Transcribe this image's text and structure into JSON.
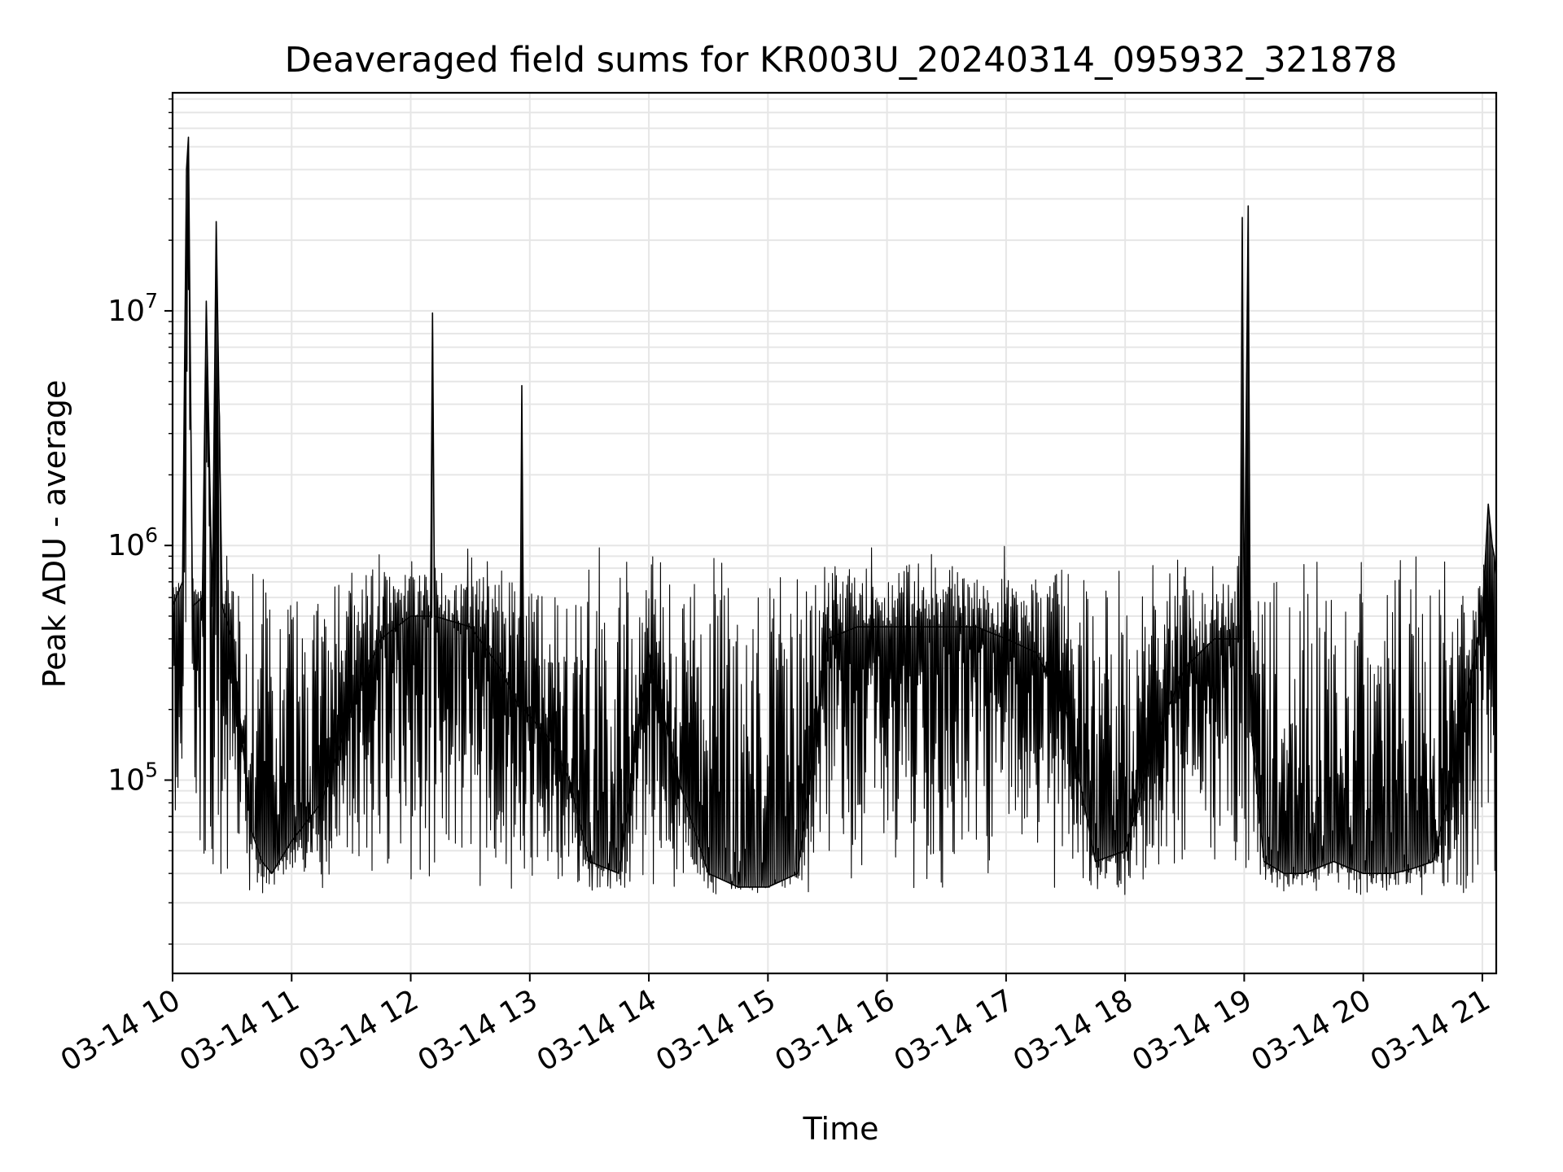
{
  "chart_data": {
    "type": "line",
    "title": "Deaveraged field sums for KR003U_20240314_095932_321878",
    "xlabel": "Time",
    "ylabel": "Peak ADU - average",
    "x_scale": "time",
    "y_scale": "log",
    "xlim": [
      "2024-03-14 10:00",
      "2024-03-14 21:07"
    ],
    "ylim": [
      15000,
      85000000
    ],
    "grid": true,
    "x_tick_labels": [
      "03-14 10",
      "03-14 11",
      "03-14 12",
      "03-14 13",
      "03-14 14",
      "03-14 15",
      "03-14 16",
      "03-14 17",
      "03-14 18",
      "03-14 19",
      "03-14 20",
      "03-14 21"
    ],
    "y_tick_labels": [
      {
        "base": "10",
        "exp": "5",
        "value": 100000
      },
      {
        "base": "10",
        "exp": "6",
        "value": 1000000
      },
      {
        "base": "10",
        "exp": "7",
        "value": 10000000
      }
    ],
    "line_color": "#000000",
    "grid_color": "#e6e6e6",
    "series": [
      {
        "x": [
          "2024-03-14 10:00",
          "2024-03-14 10:05",
          "2024-03-14 10:07",
          "2024-03-14 10:08",
          "2024-03-14 10:10",
          "2024-03-14 10:15",
          "2024-03-14 10:17",
          "2024-03-14 10:20",
          "2024-03-14 10:22",
          "2024-03-14 10:25",
          "2024-03-14 10:30",
          "2024-03-14 10:35",
          "2024-03-14 10:40",
          "2024-03-14 10:45",
          "2024-03-14 10:50",
          "2024-03-14 11:00",
          "2024-03-14 11:15",
          "2024-03-14 11:30",
          "2024-03-14 11:45",
          "2024-03-14 12:00",
          "2024-03-14 12:10",
          "2024-03-14 12:11",
          "2024-03-14 12:12",
          "2024-03-14 12:30",
          "2024-03-14 12:45",
          "2024-03-14 12:55",
          "2024-03-14 12:56",
          "2024-03-14 12:57",
          "2024-03-14 13:10",
          "2024-03-14 13:20",
          "2024-03-14 13:30",
          "2024-03-14 13:45",
          "2024-03-14 14:00",
          "2024-03-14 14:15",
          "2024-03-14 14:30",
          "2024-03-14 14:45",
          "2024-03-14 15:00",
          "2024-03-14 15:15",
          "2024-03-14 15:30",
          "2024-03-14 15:45",
          "2024-03-14 16:00",
          "2024-03-14 16:15",
          "2024-03-14 16:30",
          "2024-03-14 16:45",
          "2024-03-14 17:00",
          "2024-03-14 17:15",
          "2024-03-14 17:30",
          "2024-03-14 17:45",
          "2024-03-14 18:00",
          "2024-03-14 18:15",
          "2024-03-14 18:30",
          "2024-03-14 18:45",
          "2024-03-14 18:58",
          "2024-03-14 18:59",
          "2024-03-14 19:00",
          "2024-03-14 19:02",
          "2024-03-14 19:03",
          "2024-03-14 19:04",
          "2024-03-14 19:10",
          "2024-03-14 19:20",
          "2024-03-14 19:30",
          "2024-03-14 19:45",
          "2024-03-14 20:00",
          "2024-03-14 20:15",
          "2024-03-14 20:25",
          "2024-03-14 20:35",
          "2024-03-14 20:45",
          "2024-03-14 20:55",
          "2024-03-14 21:00",
          "2024-03-14 21:03",
          "2024-03-14 21:05",
          "2024-03-14 21:06",
          "2024-03-14 21:07"
        ],
        "y": [
          550000,
          700000,
          40000000,
          55000000,
          550000,
          600000,
          11000000,
          550000,
          24000000,
          550000,
          400000,
          150000,
          60000,
          45000,
          40000,
          55000,
          80000,
          200000,
          400000,
          500000,
          500000,
          9800000,
          500000,
          450000,
          300000,
          200000,
          4800000,
          200000,
          150000,
          100000,
          45000,
          40000,
          350000,
          100000,
          40000,
          35000,
          35000,
          40000,
          400000,
          450000,
          450000,
          450000,
          450000,
          450000,
          400000,
          350000,
          200000,
          45000,
          50000,
          150000,
          300000,
          400000,
          400000,
          25000000,
          400000,
          28000000,
          400000,
          150000,
          45000,
          40000,
          40000,
          45000,
          40000,
          40000,
          42000,
          45000,
          100000,
          300000,
          500000,
          1500000,
          1000000,
          900000,
          700000
        ]
      }
    ],
    "annotations": []
  }
}
